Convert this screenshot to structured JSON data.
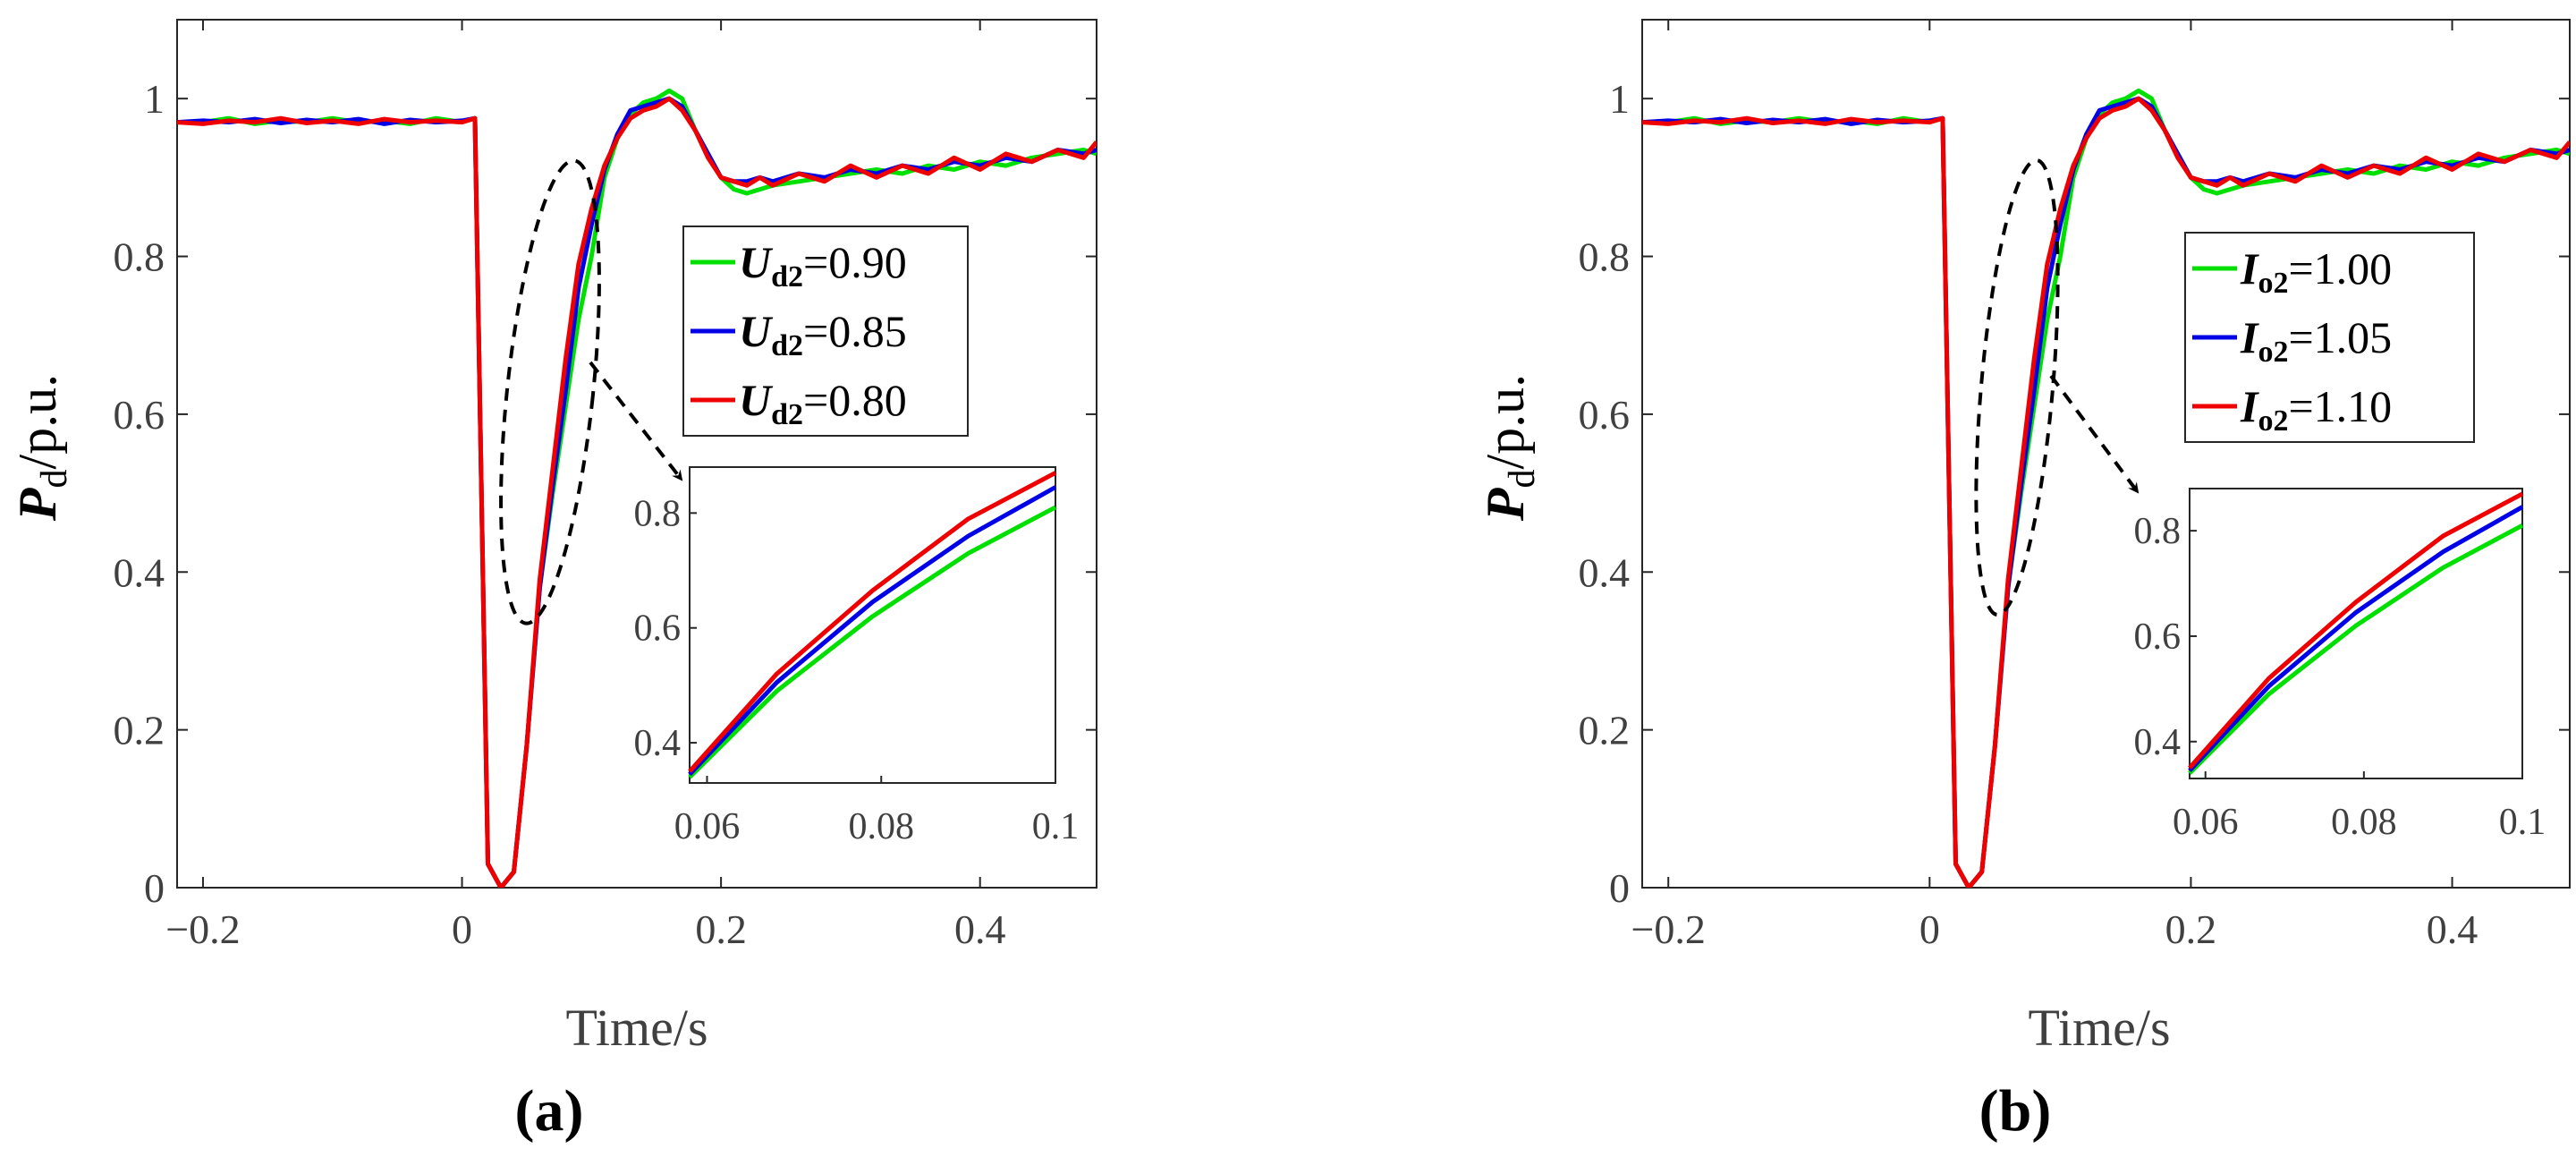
{
  "colors": {
    "green": "#00e000",
    "blue": "#0000e6",
    "red": "#ee0000"
  },
  "chart_data": [
    {
      "type": "line",
      "panel_label": "(a)",
      "xlabel": "Time/s",
      "ylabel_sym": "P",
      "ylabel_sub": "d",
      "ylabel_unit": "/p.u.",
      "xlim": [
        -0.22,
        0.49
      ],
      "ylim": [
        0,
        1.1
      ],
      "xticks": [
        -0.2,
        0,
        0.2,
        0.4
      ],
      "xtick_labels": [
        "−0.2",
        "0",
        "0.2",
        "0.4"
      ],
      "yticks": [
        0,
        0.2,
        0.4,
        0.6,
        0.8,
        1
      ],
      "ytick_labels": [
        "0",
        "0.2",
        "0.4",
        "0.6",
        "0.8",
        "1"
      ],
      "legend_position": "right",
      "series": [
        {
          "name": "U_d2=0.90",
          "sym": "U",
          "sub": "d2",
          "val": "=0.90",
          "color": "#00e000",
          "x": [
            -0.22,
            -0.2,
            -0.18,
            -0.16,
            -0.14,
            -0.12,
            -0.1,
            -0.08,
            -0.06,
            -0.04,
            -0.02,
            0,
            0.01,
            0.02,
            0.03,
            0.04,
            0.05,
            0.06,
            0.07,
            0.08,
            0.09,
            0.1,
            0.11,
            0.12,
            0.13,
            0.14,
            0.15,
            0.16,
            0.17,
            0.18,
            0.19,
            0.2,
            0.21,
            0.22,
            0.23,
            0.24,
            0.26,
            0.28,
            0.3,
            0.32,
            0.34,
            0.36,
            0.38,
            0.4,
            0.42,
            0.44,
            0.46,
            0.48,
            0.49
          ],
          "y": [
            0.97,
            0.97,
            0.975,
            0.968,
            0.972,
            0.97,
            0.975,
            0.97,
            0.972,
            0.968,
            0.975,
            0.97,
            0.975,
            0.03,
            0.0,
            0.02,
            0.18,
            0.38,
            0.5,
            0.61,
            0.72,
            0.8,
            0.9,
            0.95,
            0.98,
            0.995,
            1.0,
            1.01,
            1.0,
            0.96,
            0.93,
            0.9,
            0.885,
            0.88,
            0.885,
            0.89,
            0.895,
            0.9,
            0.905,
            0.91,
            0.905,
            0.915,
            0.91,
            0.92,
            0.915,
            0.925,
            0.93,
            0.935,
            0.93
          ]
        },
        {
          "name": "U_d2=0.85",
          "sym": "U",
          "sub": "d2",
          "val": "=0.85",
          "color": "#0000e6",
          "x": [
            -0.22,
            -0.2,
            -0.18,
            -0.16,
            -0.14,
            -0.12,
            -0.1,
            -0.08,
            -0.06,
            -0.04,
            -0.02,
            0,
            0.01,
            0.02,
            0.03,
            0.04,
            0.05,
            0.06,
            0.07,
            0.08,
            0.09,
            0.1,
            0.11,
            0.12,
            0.13,
            0.14,
            0.15,
            0.16,
            0.17,
            0.18,
            0.19,
            0.2,
            0.21,
            0.22,
            0.23,
            0.24,
            0.26,
            0.28,
            0.3,
            0.32,
            0.34,
            0.36,
            0.38,
            0.4,
            0.42,
            0.44,
            0.46,
            0.48,
            0.49
          ],
          "y": [
            0.97,
            0.972,
            0.97,
            0.974,
            0.969,
            0.973,
            0.97,
            0.974,
            0.968,
            0.973,
            0.97,
            0.972,
            0.975,
            0.03,
            0.0,
            0.02,
            0.18,
            0.38,
            0.51,
            0.63,
            0.76,
            0.84,
            0.91,
            0.955,
            0.985,
            0.99,
            0.995,
            1.0,
            0.99,
            0.96,
            0.93,
            0.9,
            0.895,
            0.895,
            0.9,
            0.895,
            0.905,
            0.9,
            0.91,
            0.905,
            0.915,
            0.91,
            0.92,
            0.915,
            0.925,
            0.92,
            0.935,
            0.93,
            0.935
          ]
        },
        {
          "name": "U_d2=0.80",
          "sym": "U",
          "sub": "d2",
          "val": "=0.80",
          "color": "#ee0000",
          "x": [
            -0.22,
            -0.2,
            -0.18,
            -0.16,
            -0.14,
            -0.12,
            -0.1,
            -0.08,
            -0.06,
            -0.04,
            -0.02,
            0,
            0.01,
            0.02,
            0.03,
            0.04,
            0.05,
            0.06,
            0.07,
            0.08,
            0.09,
            0.1,
            0.11,
            0.12,
            0.13,
            0.14,
            0.15,
            0.16,
            0.17,
            0.18,
            0.19,
            0.2,
            0.21,
            0.22,
            0.23,
            0.24,
            0.26,
            0.28,
            0.3,
            0.32,
            0.34,
            0.36,
            0.38,
            0.4,
            0.42,
            0.44,
            0.46,
            0.48,
            0.49
          ],
          "y": [
            0.97,
            0.968,
            0.972,
            0.97,
            0.975,
            0.969,
            0.972,
            0.968,
            0.974,
            0.97,
            0.972,
            0.97,
            0.975,
            0.03,
            0.0,
            0.02,
            0.18,
            0.39,
            0.53,
            0.67,
            0.79,
            0.86,
            0.915,
            0.95,
            0.975,
            0.985,
            0.99,
            1.0,
            0.985,
            0.96,
            0.925,
            0.9,
            0.895,
            0.89,
            0.9,
            0.89,
            0.905,
            0.895,
            0.915,
            0.9,
            0.915,
            0.905,
            0.925,
            0.91,
            0.93,
            0.92,
            0.935,
            0.925,
            0.945
          ]
        }
      ],
      "inset": {
        "xlim": [
          0.058,
          0.1
        ],
        "ylim": [
          0.33,
          0.88
        ],
        "xticks": [
          0.06,
          0.08,
          0.1
        ],
        "xtick_labels": [
          "0.06",
          "0.08",
          "0.1"
        ],
        "yticks": [
          0.4,
          0.6,
          0.8
        ],
        "ytick_labels": [
          "0.4",
          "0.6",
          "0.8"
        ],
        "series_x": [
          0.058,
          0.068,
          0.079,
          0.09,
          0.1
        ],
        "series_y": [
          [
            0.34,
            0.49,
            0.62,
            0.73,
            0.81
          ],
          [
            0.345,
            0.505,
            0.645,
            0.76,
            0.845
          ],
          [
            0.35,
            0.52,
            0.665,
            0.79,
            0.87
          ]
        ]
      }
    },
    {
      "type": "line",
      "panel_label": "(b)",
      "xlabel": "Time/s",
      "ylabel_sym": "P",
      "ylabel_sub": "d",
      "ylabel_unit": "/p.u.",
      "xlim": [
        -0.22,
        0.49
      ],
      "ylim": [
        0,
        1.1
      ],
      "xticks": [
        -0.2,
        0,
        0.2,
        0.4
      ],
      "xtick_labels": [
        "−0.2",
        "0",
        "0.2",
        "0.4"
      ],
      "yticks": [
        0,
        0.2,
        0.4,
        0.6,
        0.8,
        1
      ],
      "ytick_labels": [
        "0",
        "0.2",
        "0.4",
        "0.6",
        "0.8",
        "1"
      ],
      "legend_position": "right",
      "series": [
        {
          "name": "I_o2=1.00",
          "sym": "I",
          "sub": "o2",
          "val": "=1.00",
          "color": "#00e000",
          "x": [
            -0.22,
            -0.2,
            -0.18,
            -0.16,
            -0.14,
            -0.12,
            -0.1,
            -0.08,
            -0.06,
            -0.04,
            -0.02,
            0,
            0.01,
            0.02,
            0.03,
            0.04,
            0.05,
            0.06,
            0.07,
            0.08,
            0.09,
            0.1,
            0.11,
            0.12,
            0.13,
            0.14,
            0.15,
            0.16,
            0.17,
            0.18,
            0.19,
            0.2,
            0.21,
            0.22,
            0.23,
            0.24,
            0.26,
            0.28,
            0.3,
            0.32,
            0.34,
            0.36,
            0.38,
            0.4,
            0.42,
            0.44,
            0.46,
            0.48,
            0.49
          ],
          "y": [
            0.97,
            0.97,
            0.975,
            0.968,
            0.972,
            0.97,
            0.975,
            0.97,
            0.972,
            0.968,
            0.975,
            0.97,
            0.975,
            0.03,
            0.0,
            0.02,
            0.18,
            0.38,
            0.5,
            0.61,
            0.72,
            0.8,
            0.9,
            0.95,
            0.98,
            0.995,
            1.0,
            1.01,
            1.0,
            0.96,
            0.93,
            0.9,
            0.885,
            0.88,
            0.885,
            0.89,
            0.895,
            0.9,
            0.905,
            0.91,
            0.905,
            0.915,
            0.91,
            0.92,
            0.915,
            0.925,
            0.93,
            0.935,
            0.93
          ]
        },
        {
          "name": "I_o2=1.05",
          "sym": "I",
          "sub": "o2",
          "val": "=1.05",
          "color": "#0000e6",
          "x": [
            -0.22,
            -0.2,
            -0.18,
            -0.16,
            -0.14,
            -0.12,
            -0.1,
            -0.08,
            -0.06,
            -0.04,
            -0.02,
            0,
            0.01,
            0.02,
            0.03,
            0.04,
            0.05,
            0.06,
            0.07,
            0.08,
            0.09,
            0.1,
            0.11,
            0.12,
            0.13,
            0.14,
            0.15,
            0.16,
            0.17,
            0.18,
            0.19,
            0.2,
            0.21,
            0.22,
            0.23,
            0.24,
            0.26,
            0.28,
            0.3,
            0.32,
            0.34,
            0.36,
            0.38,
            0.4,
            0.42,
            0.44,
            0.46,
            0.48,
            0.49
          ],
          "y": [
            0.97,
            0.972,
            0.97,
            0.974,
            0.969,
            0.973,
            0.97,
            0.974,
            0.968,
            0.973,
            0.97,
            0.972,
            0.975,
            0.03,
            0.0,
            0.02,
            0.18,
            0.38,
            0.51,
            0.63,
            0.76,
            0.84,
            0.91,
            0.955,
            0.985,
            0.99,
            0.995,
            1.0,
            0.99,
            0.96,
            0.93,
            0.9,
            0.895,
            0.895,
            0.9,
            0.895,
            0.905,
            0.9,
            0.91,
            0.905,
            0.915,
            0.91,
            0.92,
            0.915,
            0.925,
            0.92,
            0.935,
            0.93,
            0.935
          ]
        },
        {
          "name": "I_o2=1.10",
          "sym": "I",
          "sub": "o2",
          "val": "=1.10",
          "color": "#ee0000",
          "x": [
            -0.22,
            -0.2,
            -0.18,
            -0.16,
            -0.14,
            -0.12,
            -0.1,
            -0.08,
            -0.06,
            -0.04,
            -0.02,
            0,
            0.01,
            0.02,
            0.03,
            0.04,
            0.05,
            0.06,
            0.07,
            0.08,
            0.09,
            0.1,
            0.11,
            0.12,
            0.13,
            0.14,
            0.15,
            0.16,
            0.17,
            0.18,
            0.19,
            0.2,
            0.21,
            0.22,
            0.23,
            0.24,
            0.26,
            0.28,
            0.3,
            0.32,
            0.34,
            0.36,
            0.38,
            0.4,
            0.42,
            0.44,
            0.46,
            0.48,
            0.49
          ],
          "y": [
            0.97,
            0.968,
            0.972,
            0.97,
            0.975,
            0.969,
            0.972,
            0.968,
            0.974,
            0.97,
            0.972,
            0.97,
            0.975,
            0.03,
            0.0,
            0.02,
            0.18,
            0.39,
            0.53,
            0.67,
            0.79,
            0.86,
            0.915,
            0.95,
            0.975,
            0.985,
            0.99,
            1.0,
            0.985,
            0.96,
            0.925,
            0.9,
            0.895,
            0.89,
            0.9,
            0.89,
            0.905,
            0.895,
            0.915,
            0.9,
            0.915,
            0.905,
            0.925,
            0.91,
            0.93,
            0.92,
            0.935,
            0.925,
            0.945
          ]
        }
      ],
      "inset": {
        "xlim": [
          0.058,
          0.1
        ],
        "ylim": [
          0.33,
          0.88
        ],
        "xticks": [
          0.06,
          0.08,
          0.1
        ],
        "xtick_labels": [
          "0.06",
          "0.08",
          "0.1"
        ],
        "yticks": [
          0.4,
          0.6,
          0.8
        ],
        "ytick_labels": [
          "0.4",
          "0.6",
          "0.8"
        ],
        "series_x": [
          0.058,
          0.068,
          0.079,
          0.09,
          0.1
        ],
        "series_y": [
          [
            0.34,
            0.49,
            0.62,
            0.73,
            0.81
          ],
          [
            0.345,
            0.505,
            0.645,
            0.76,
            0.845
          ],
          [
            0.35,
            0.52,
            0.665,
            0.79,
            0.87
          ]
        ]
      }
    }
  ]
}
